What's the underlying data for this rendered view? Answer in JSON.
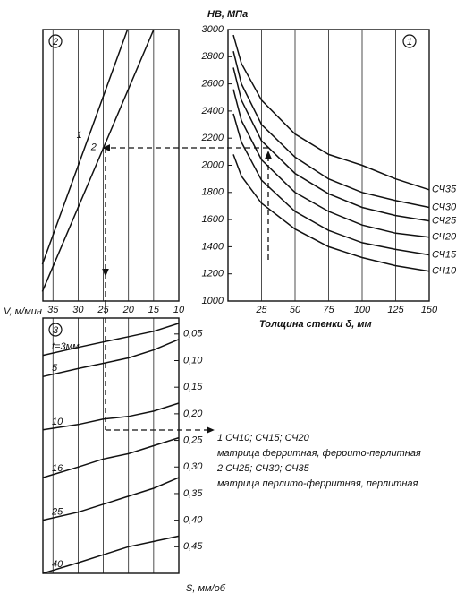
{
  "chart_data": [
    {
      "type": "line",
      "panel_label": "1",
      "y_label": "HB, МПа",
      "x_label": "Толщина стенки δ, мм",
      "xlim": [
        0,
        150
      ],
      "ylim": [
        1000,
        3000
      ],
      "xticks": [
        25,
        50,
        75,
        100,
        125,
        150
      ],
      "yticks": [
        1000,
        1200,
        1400,
        1600,
        1800,
        2000,
        2200,
        2400,
        2600,
        2800,
        3000
      ],
      "grid": "x",
      "x": [
        4,
        10,
        25,
        50,
        75,
        100,
        125,
        150
      ],
      "series": [
        {
          "name": "СЧ35",
          "color": "#111111",
          "values": [
            2960,
            2750,
            2480,
            2230,
            2080,
            2000,
            1900,
            1820
          ]
        },
        {
          "name": "СЧ30",
          "color": "#111111",
          "values": [
            2840,
            2600,
            2300,
            2060,
            1900,
            1800,
            1740,
            1690
          ]
        },
        {
          "name": "СЧ25",
          "color": "#111111",
          "values": [
            2720,
            2480,
            2180,
            1940,
            1790,
            1690,
            1630,
            1590
          ]
        },
        {
          "name": "СЧ20",
          "color": "#111111",
          "values": [
            2560,
            2330,
            2040,
            1800,
            1660,
            1560,
            1500,
            1470
          ]
        },
        {
          "name": "СЧ15",
          "color": "#111111",
          "values": [
            2380,
            2170,
            1890,
            1660,
            1520,
            1430,
            1380,
            1340
          ]
        },
        {
          "name": "СЧ10",
          "color": "#111111",
          "values": [
            2080,
            1920,
            1720,
            1530,
            1400,
            1320,
            1260,
            1220
          ]
        }
      ]
    },
    {
      "type": "line",
      "panel_label": "2",
      "x_label": "V, м/мин",
      "xlim": [
        37,
        10
      ],
      "ylim": [
        1000,
        3000
      ],
      "xticks": [
        35,
        30,
        25,
        20,
        15,
        10
      ],
      "grid": "x",
      "series": [
        {
          "name": "1",
          "color": "#111111",
          "x": [
            37.1,
            20.2
          ],
          "values": [
            1270,
            3000
          ]
        },
        {
          "name": "2",
          "color": "#111111",
          "x": [
            37.1,
            15
          ],
          "values": [
            1070,
            3000
          ]
        }
      ],
      "annotations": [
        "1 СЧ10; СЧ15; СЧ20",
        "матрица ферритная, феррито-перлитная",
        "2 СЧ25; СЧ30; СЧ35",
        "матрица перлито-ферритная, перлитная"
      ]
    },
    {
      "type": "line",
      "panel_label": "3",
      "y_label": "S, мм/об",
      "xlim": [
        37,
        10
      ],
      "ylim": [
        0.5,
        0.02
      ],
      "yticks": [
        {
          "value": 0.05,
          "label": "0,05"
        },
        {
          "value": 0.1,
          "label": "0,10"
        },
        {
          "value": 0.15,
          "label": "0,15"
        },
        {
          "value": 0.2,
          "label": "0,20"
        },
        {
          "value": 0.25,
          "label": "0,25"
        },
        {
          "value": 0.3,
          "label": "0,30"
        },
        {
          "value": 0.35,
          "label": "0,35"
        },
        {
          "value": 0.4,
          "label": "0,40"
        },
        {
          "value": 0.45,
          "label": "0,45"
        }
      ],
      "x": [
        37,
        30,
        25,
        20,
        15,
        10
      ],
      "series": [
        {
          "name": "t=3мм",
          "color": "#111111",
          "values": [
            0.09,
            0.075,
            0.065,
            0.055,
            0.045,
            0.03
          ]
        },
        {
          "name": "5",
          "color": "#111111",
          "values": [
            0.13,
            0.115,
            0.105,
            0.095,
            0.08,
            0.06
          ]
        },
        {
          "name": "10",
          "color": "#111111",
          "values": [
            0.23,
            0.22,
            0.21,
            0.205,
            0.195,
            0.18
          ]
        },
        {
          "name": "16",
          "color": "#111111",
          "values": [
            0.32,
            0.3,
            0.285,
            0.275,
            0.26,
            0.245
          ]
        },
        {
          "name": "25",
          "color": "#111111",
          "values": [
            0.4,
            0.385,
            0.37,
            0.355,
            0.34,
            0.32
          ]
        },
        {
          "name": "40",
          "color": "#111111",
          "values": [
            0.5,
            0.48,
            0.465,
            0.45,
            0.44,
            0.43
          ]
        }
      ]
    }
  ]
}
